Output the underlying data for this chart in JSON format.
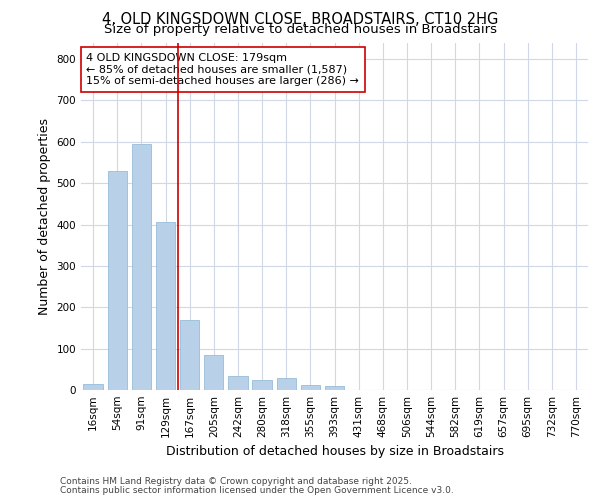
{
  "title_line1": "4, OLD KINGSDOWN CLOSE, BROADSTAIRS, CT10 2HG",
  "title_line2": "Size of property relative to detached houses in Broadstairs",
  "xlabel": "Distribution of detached houses by size in Broadstairs",
  "ylabel": "Number of detached properties",
  "bar_color": "#b8d0e8",
  "bar_edge_color": "#8ab4d4",
  "vline_color": "#cc0000",
  "vline_x_index": 3.5,
  "categories": [
    "16sqm",
    "54sqm",
    "91sqm",
    "129sqm",
    "167sqm",
    "205sqm",
    "242sqm",
    "280sqm",
    "318sqm",
    "355sqm",
    "393sqm",
    "431sqm",
    "468sqm",
    "506sqm",
    "544sqm",
    "582sqm",
    "619sqm",
    "657sqm",
    "695sqm",
    "732sqm",
    "770sqm"
  ],
  "values": [
    15,
    530,
    595,
    405,
    170,
    85,
    35,
    25,
    28,
    12,
    10,
    0,
    0,
    0,
    0,
    0,
    0,
    0,
    0,
    0,
    0
  ],
  "ylim": [
    0,
    840
  ],
  "yticks": [
    0,
    100,
    200,
    300,
    400,
    500,
    600,
    700,
    800
  ],
  "annotation_title": "4 OLD KINGSDOWN CLOSE: 179sqm",
  "annotation_line1": "← 85% of detached houses are smaller (1,587)",
  "annotation_line2": "15% of semi-detached houses are larger (286) →",
  "annotation_box_facecolor": "#ffffff",
  "annotation_box_edgecolor": "#cc0000",
  "plot_bg_color": "#ffffff",
  "grid_color": "#d0d8e8",
  "footer_line1": "Contains HM Land Registry data © Crown copyright and database right 2025.",
  "footer_line2": "Contains public sector information licensed under the Open Government Licence v3.0.",
  "title_fontsize": 10.5,
  "subtitle_fontsize": 9.5,
  "axis_label_fontsize": 9,
  "tick_fontsize": 7.5,
  "annotation_fontsize": 8,
  "footer_fontsize": 6.5
}
